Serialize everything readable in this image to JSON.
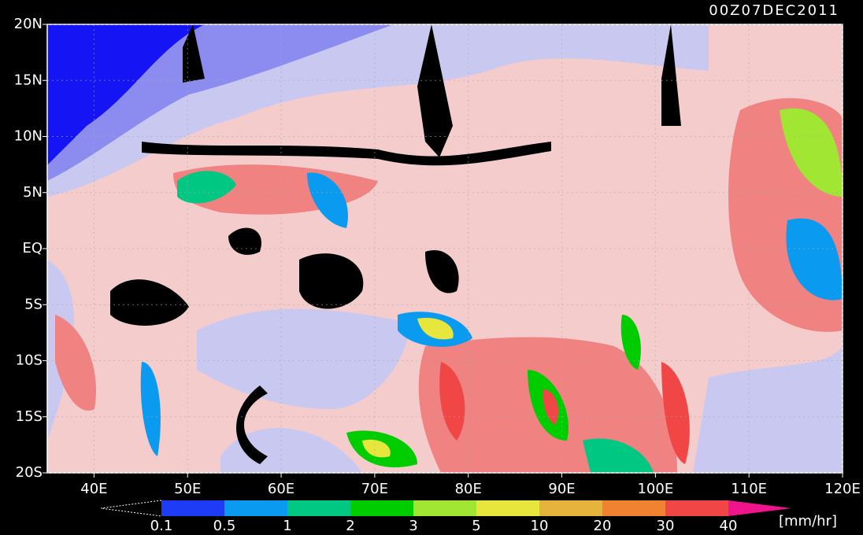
{
  "map_data": {
    "title": "00Z07DEC2011",
    "xlim": [
      35,
      120
    ],
    "ylim": [
      -20,
      20
    ],
    "lon_ticks": [
      {
        "value": 40,
        "label": "40E"
      },
      {
        "value": 50,
        "label": "50E"
      },
      {
        "value": 60,
        "label": "60E"
      },
      {
        "value": 70,
        "label": "70E"
      },
      {
        "value": 80,
        "label": "80E"
      },
      {
        "value": 90,
        "label": "90E"
      },
      {
        "value": 100,
        "label": "100E"
      },
      {
        "value": 110,
        "label": "110E"
      },
      {
        "value": 120,
        "label": "120E"
      }
    ],
    "lat_ticks": [
      {
        "value": 20,
        "label": "20N"
      },
      {
        "value": 15,
        "label": "15N"
      },
      {
        "value": 10,
        "label": "10N"
      },
      {
        "value": 5,
        "label": "5N"
      },
      {
        "value": 0,
        "label": "EQ"
      },
      {
        "value": -5,
        "label": "5S"
      },
      {
        "value": -10,
        "label": "10S"
      },
      {
        "value": -15,
        "label": "15S"
      },
      {
        "value": -20,
        "label": "20S"
      }
    ],
    "grid": true,
    "colorbar": {
      "levels": [
        0.1,
        0.5,
        1,
        2,
        3,
        5,
        10,
        20,
        30,
        40
      ],
      "colors": [
        "#1e3cf5",
        "#0a9bf0",
        "#00c882",
        "#00cd00",
        "#a0e632",
        "#e6e63c",
        "#e6b43c",
        "#f08232",
        "#f04646"
      ],
      "over_color": "#f0148c",
      "unit": "[mm/hr]"
    }
  }
}
